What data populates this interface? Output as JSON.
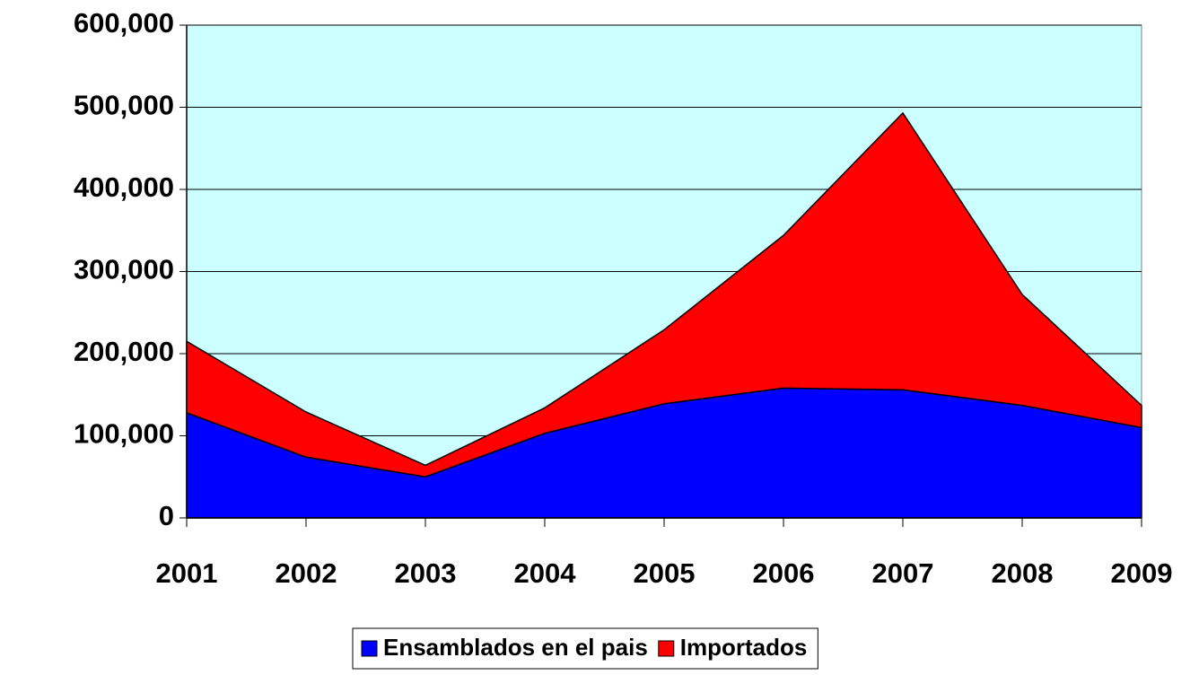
{
  "chart_data": {
    "type": "area",
    "stacked": true,
    "categories": [
      "2001",
      "2002",
      "2003",
      "2004",
      "2005",
      "2006",
      "2007",
      "2008",
      "2009"
    ],
    "series": [
      {
        "name": "Ensamblados en el pais",
        "color": "#0000ff",
        "values": [
          128000,
          74000,
          50000,
          103000,
          139000,
          158000,
          156000,
          137000,
          110000
        ]
      },
      {
        "name": "Importados",
        "color": "#ff0000",
        "values": [
          87000,
          55000,
          14000,
          31000,
          90000,
          186000,
          337000,
          135000,
          27000
        ]
      }
    ],
    "ylim": [
      0,
      600000
    ],
    "yticks": [
      {
        "value": 0,
        "label": "0"
      },
      {
        "value": 100000,
        "label": "100,000"
      },
      {
        "value": 200000,
        "label": "200,000"
      },
      {
        "value": 300000,
        "label": "300,000"
      },
      {
        "value": 400000,
        "label": "400,000"
      },
      {
        "value": 500000,
        "label": "500,000"
      },
      {
        "value": 600000,
        "label": "600,000"
      }
    ],
    "grid": true,
    "plot_background": "#ccffff",
    "legend": "bottom"
  }
}
